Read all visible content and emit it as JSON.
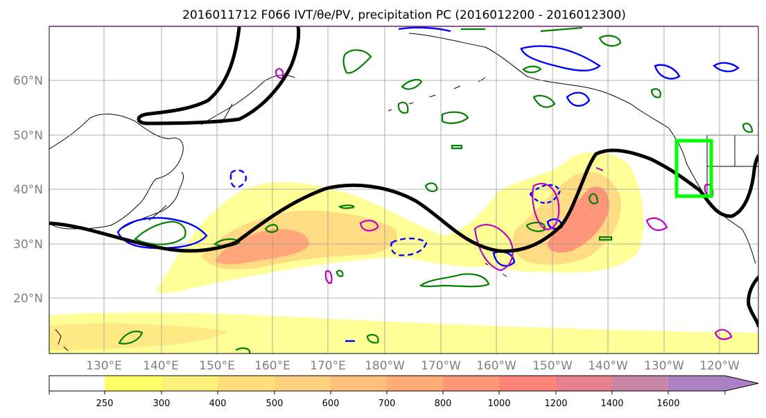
{
  "title": "2016011712 F066 IVT/θe/PV, precipitation PC (2016012200 - 2016012300)",
  "map": {
    "lat_labels": [
      "60°N",
      "50°N",
      "40°N",
      "30°N",
      "20°N"
    ],
    "lon_labels": [
      "130°E",
      "140°E",
      "150°E",
      "160°E",
      "170°E",
      "180°W",
      "170°W",
      "160°W",
      "150°W",
      "140°W",
      "130°W",
      "120°W"
    ],
    "grid": true,
    "box_color": "#00ff00",
    "jet_color": "#000000"
  },
  "colorbar": {
    "ticks": [
      "250",
      "300",
      "400",
      "500",
      "600",
      "700",
      "800",
      "1000",
      "1200",
      "1400",
      "1600"
    ],
    "colors": [
      "#ffff66",
      "#fff27a",
      "#ffe07a",
      "#ffd27f",
      "#ffc07c",
      "#ffad78",
      "#ff9878",
      "#ff8478",
      "#e87f8c",
      "#c987a8",
      "#ab80c4"
    ],
    "extend": "max"
  },
  "contour_colors": {
    "positive": "#008000",
    "negative": "#0000ff",
    "magenta": "#c000c0"
  }
}
